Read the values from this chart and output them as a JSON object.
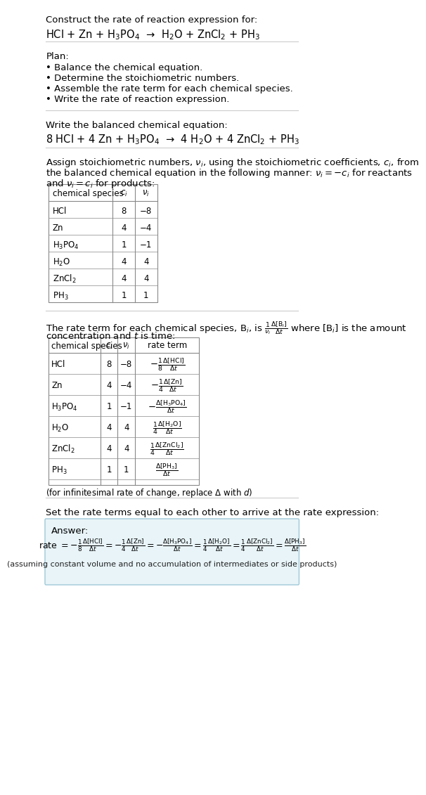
{
  "title_line1": "Construct the rate of reaction expression for:",
  "title_line2": "HCl + Zn + H$_3$PO$_4$  →  H$_2$O + ZnCl$_2$ + PH$_3$",
  "plan_header": "Plan:",
  "plan_items": [
    "• Balance the chemical equation.",
    "• Determine the stoichiometric numbers.",
    "• Assemble the rate term for each chemical species.",
    "• Write the rate of reaction expression."
  ],
  "balanced_header": "Write the balanced chemical equation:",
  "balanced_eq": "8 HCl + 4 Zn + H$_3$PO$_4$  →  4 H$_2$O + 4 ZnCl$_2$ + PH$_3$",
  "stoich_text1": "Assign stoichiometric numbers, $\\nu_i$, using the stoichiometric coefficients, $c_i$, from",
  "stoich_text2": "the balanced chemical equation in the following manner: $\\nu_i = -c_i$ for reactants",
  "stoich_text3": "and $\\nu_i = c_i$ for products:",
  "table1_headers": [
    "chemical species",
    "$c_i$",
    "$\\nu_i$"
  ],
  "table1_rows": [
    [
      "HCl",
      "8",
      "−8"
    ],
    [
      "Zn",
      "4",
      "−4"
    ],
    [
      "H$_3$PO$_4$",
      "1",
      "−1"
    ],
    [
      "H$_2$O",
      "4",
      "4"
    ],
    [
      "ZnCl$_2$",
      "4",
      "4"
    ],
    [
      "PH$_3$",
      "1",
      "1"
    ]
  ],
  "rate_text1": "The rate term for each chemical species, B$_i$, is $\\frac{1}{\\nu_i}\\frac{\\Delta[\\mathrm{B}_i]}{\\Delta t}$ where [B$_i$] is the amount",
  "rate_text2": "concentration and $t$ is time:",
  "table2_headers": [
    "chemical species",
    "$c_i$",
    "$\\nu_i$",
    "rate term"
  ],
  "table2_rows": [
    [
      "HCl",
      "8",
      "−8",
      "$-\\frac{1}{8}\\frac{\\Delta[\\mathrm{HCl}]}{\\Delta t}$"
    ],
    [
      "Zn",
      "4",
      "−4",
      "$-\\frac{1}{4}\\frac{\\Delta[\\mathrm{Zn}]}{\\Delta t}$"
    ],
    [
      "H$_3$PO$_4$",
      "1",
      "−1",
      "$-\\frac{\\Delta[\\mathrm{H_3PO_4}]}{\\Delta t}$"
    ],
    [
      "H$_2$O",
      "4",
      "4",
      "$\\frac{1}{4}\\frac{\\Delta[\\mathrm{H_2O}]}{\\Delta t}$"
    ],
    [
      "ZnCl$_2$",
      "4",
      "4",
      "$\\frac{1}{4}\\frac{\\Delta[\\mathrm{ZnCl_2}]}{\\Delta t}$"
    ],
    [
      "PH$_3$",
      "1",
      "1",
      "$\\frac{\\Delta[\\mathrm{PH_3}]}{\\Delta t}$"
    ]
  ],
  "infinitesimal_note": "(for infinitesimal rate of change, replace Δ with $d$)",
  "set_rate_text": "Set the rate terms equal to each other to arrive at the rate expression:",
  "answer_label": "Answer:",
  "answer_box_color": "#e8f4f8",
  "answer_box_border": "#a0c8d8",
  "rate_expression": "rate $= -\\frac{1}{8}\\frac{\\Delta[\\mathrm{HCl}]}{\\Delta t} = -\\frac{1}{4}\\frac{\\Delta[\\mathrm{Zn}]}{\\Delta t} = -\\frac{\\Delta[\\mathrm{H_3PO_4}]}{\\Delta t} = \\frac{1}{4}\\frac{\\Delta[\\mathrm{H_2O}]}{\\Delta t} = \\frac{1}{4}\\frac{\\Delta[\\mathrm{ZnCl_2}]}{\\Delta t} = \\frac{\\Delta[\\mathrm{PH_3}]}{\\Delta t}$",
  "assumption_note": "(assuming constant volume and no accumulation of intermediates or side products)",
  "bg_color": "#ffffff",
  "text_color": "#000000",
  "table_border_color": "#888888",
  "font_size": 9.5,
  "small_font_size": 8.5
}
